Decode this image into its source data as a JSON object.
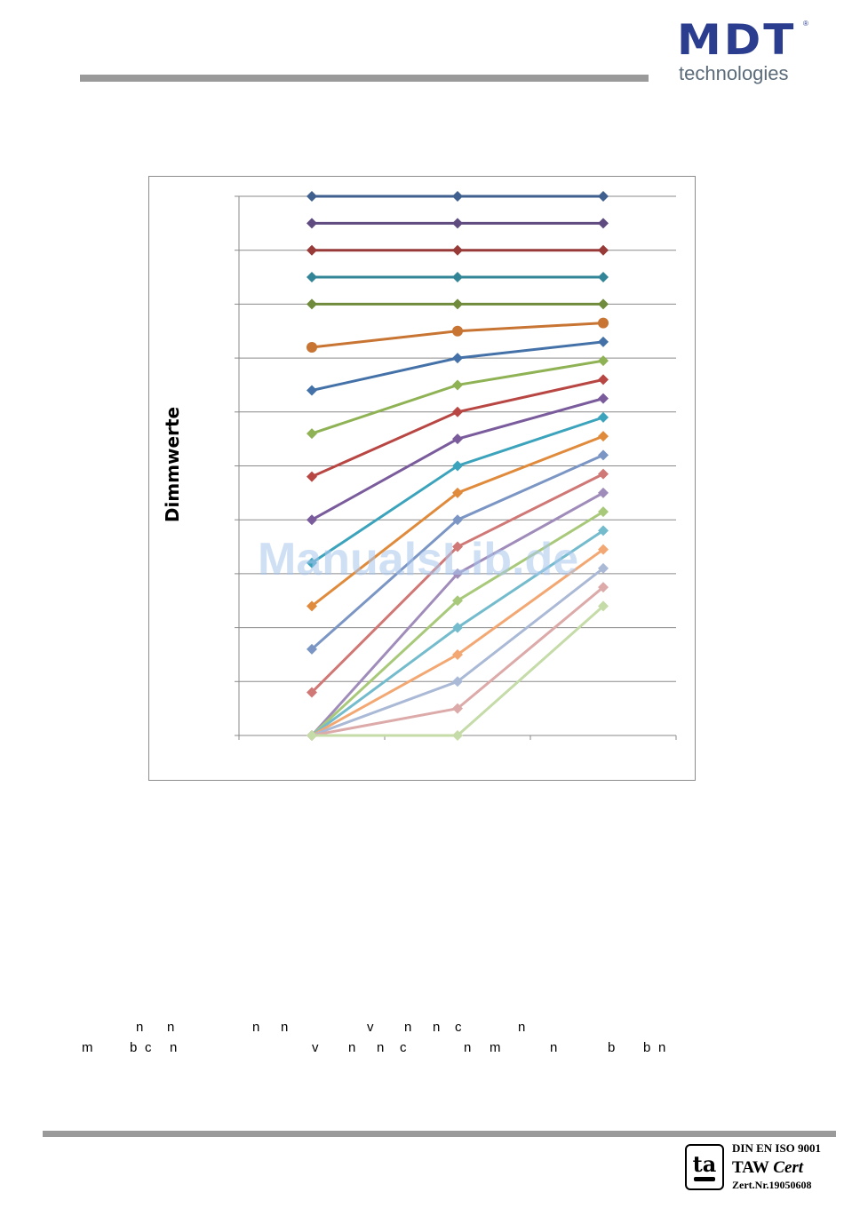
{
  "header": {
    "logo_mark": "MDT",
    "logo_registered": "®",
    "logo_subtitle": "technologies"
  },
  "chart_data": {
    "type": "line",
    "title": "",
    "xlabel": "",
    "ylabel": "Dimmwerte",
    "x": [
      1,
      2,
      3
    ],
    "x_categories": 3,
    "ylim": [
      0,
      10
    ],
    "grid": true,
    "series": [
      {
        "values": [
          10.0,
          10.0,
          10.0
        ],
        "color": "#3f5f8f",
        "marker": "diamond"
      },
      {
        "values": [
          9.5,
          9.5,
          9.5
        ],
        "color": "#5f4b7f",
        "marker": "diamond"
      },
      {
        "values": [
          9.0,
          9.0,
          9.0
        ],
        "color": "#973a38",
        "marker": "diamond"
      },
      {
        "values": [
          8.5,
          8.5,
          8.5
        ],
        "color": "#318597",
        "marker": "diamond"
      },
      {
        "values": [
          8.0,
          8.0,
          8.0
        ],
        "color": "#6f8b3b",
        "marker": "diamond"
      },
      {
        "values": [
          7.2,
          7.5,
          7.65
        ],
        "color": "#c87433",
        "marker": "circle"
      },
      {
        "values": [
          6.4,
          7.0,
          7.3
        ],
        "color": "#4472a8",
        "marker": "diamond"
      },
      {
        "values": [
          5.6,
          6.5,
          6.95
        ],
        "color": "#8fb255",
        "marker": "diamond"
      },
      {
        "values": [
          4.8,
          6.0,
          6.6
        ],
        "color": "#b84744",
        "marker": "diamond"
      },
      {
        "values": [
          4.0,
          5.5,
          6.25
        ],
        "color": "#7a5b9c",
        "marker": "diamond"
      },
      {
        "values": [
          3.2,
          5.0,
          5.9
        ],
        "color": "#3ba3bb",
        "marker": "diamond"
      },
      {
        "values": [
          2.4,
          4.5,
          5.55
        ],
        "color": "#e08a3c",
        "marker": "diamond"
      },
      {
        "values": [
          1.6,
          4.0,
          5.2
        ],
        "color": "#7b96c4",
        "marker": "diamond"
      },
      {
        "values": [
          0.8,
          3.5,
          4.85
        ],
        "color": "#d07876",
        "marker": "diamond"
      },
      {
        "values": [
          0.0,
          3.0,
          4.5
        ],
        "color": "#a08cba",
        "marker": "diamond"
      },
      {
        "values": [
          0.0,
          2.5,
          4.15
        ],
        "color": "#a9c97a",
        "marker": "diamond"
      },
      {
        "values": [
          0.0,
          2.0,
          3.8
        ],
        "color": "#74bccd",
        "marker": "diamond"
      },
      {
        "values": [
          0.0,
          1.5,
          3.45
        ],
        "color": "#f3a874",
        "marker": "diamond"
      },
      {
        "values": [
          0.0,
          1.0,
          3.1
        ],
        "color": "#aab9d6",
        "marker": "diamond"
      },
      {
        "values": [
          0.0,
          0.5,
          2.75
        ],
        "color": "#dcaaa8",
        "marker": "diamond"
      },
      {
        "values": [
          0.0,
          0.0,
          2.4
        ],
        "color": "#c5dba8",
        "marker": "diamond"
      }
    ]
  },
  "watermark": "ManualsLib.de",
  "text_fragments": {
    "line1": [
      "n",
      "n",
      "n",
      "n",
      "v",
      "n",
      "n",
      "c",
      "n"
    ],
    "line2": [
      "m",
      "b",
      "c",
      "n",
      "v",
      "n",
      "n",
      "c",
      "n",
      "m",
      "n",
      "b",
      "b",
      "n"
    ]
  },
  "footer": {
    "cert_line1": "DIN EN ISO 9001",
    "cert_line2_a": "TAW",
    "cert_line2_b": "Cert",
    "cert_line3": "Zert.Nr.19050608",
    "cert_logo": "ta"
  }
}
